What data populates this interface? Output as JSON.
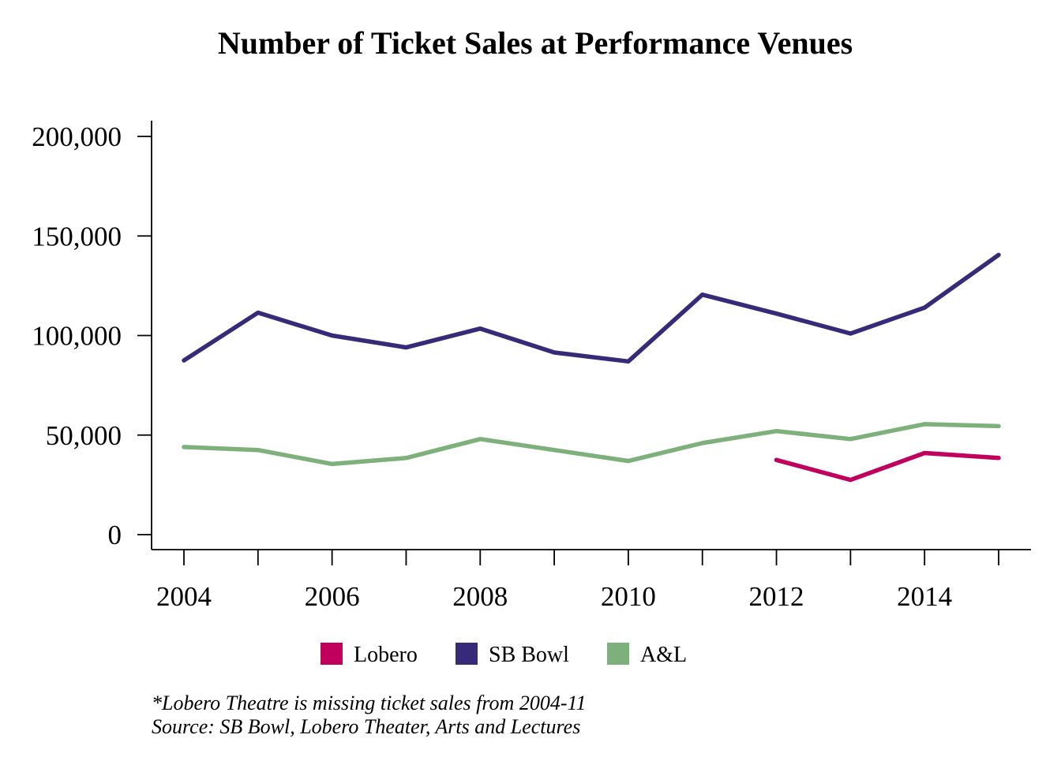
{
  "chart_data": {
    "type": "line",
    "title": "Number of Ticket Sales at Performance Venues",
    "xlabel": "",
    "ylabel": "",
    "x": [
      2004,
      2005,
      2006,
      2007,
      2008,
      2009,
      2010,
      2011,
      2012,
      2013,
      2014,
      2015
    ],
    "x_ticks": [
      2004,
      2005,
      2006,
      2007,
      2008,
      2009,
      2010,
      2011,
      2012,
      2013,
      2014,
      2015
    ],
    "x_tick_labels": [
      "2004",
      "",
      "2006",
      "",
      "2008",
      "",
      "2010",
      "",
      "2012",
      "",
      "2014",
      ""
    ],
    "xlim": [
      2003.55,
      2015.45
    ],
    "y_ticks": [
      0,
      50000,
      100000,
      150000,
      200000
    ],
    "y_tick_labels": [
      "0",
      "50,000",
      "100,000",
      "150,000",
      "200,000"
    ],
    "ylim": [
      -7500,
      208000
    ],
    "grid": false,
    "legend_position": "bottom",
    "series": [
      {
        "name": "Lobero",
        "color": "#c0005c",
        "values": [
          null,
          null,
          null,
          null,
          null,
          null,
          null,
          null,
          37500,
          27500,
          41000,
          38500
        ]
      },
      {
        "name": "SB Bowl",
        "color": "#372a78",
        "values": [
          87500,
          111500,
          100000,
          94000,
          103500,
          91500,
          87000,
          120500,
          111000,
          101000,
          114000,
          140500
        ]
      },
      {
        "name": "A&L",
        "color": "#7db07a",
        "values": [
          44000,
          42500,
          35500,
          38500,
          48000,
          42500,
          37000,
          46000,
          52000,
          48000,
          55500,
          54500
        ]
      }
    ],
    "notes": [
      "*Lobero Theatre is missing ticket sales from 2004-11",
      "Source: SB Bowl, Lobero Theater, Arts and Lectures"
    ]
  }
}
